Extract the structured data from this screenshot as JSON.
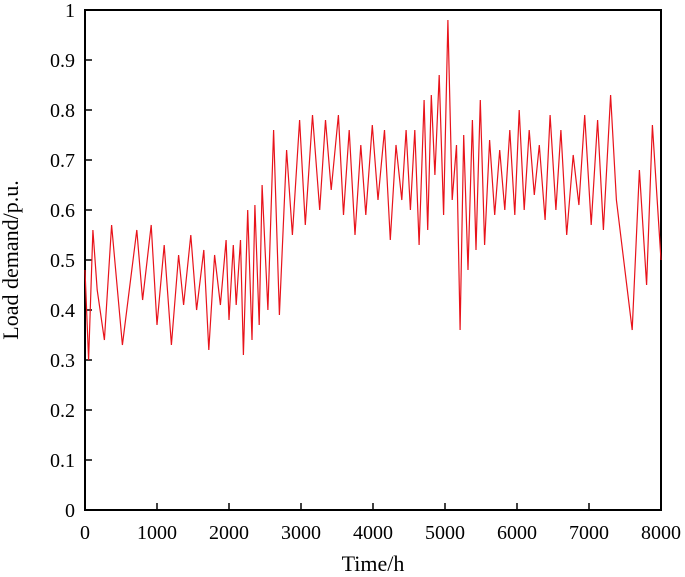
{
  "chart_data": {
    "type": "line",
    "xlabel": "Time/h",
    "ylabel": "Load demand/p.u.",
    "xlim": [
      0,
      8000
    ],
    "ylim": [
      0,
      1
    ],
    "xticks": [
      0,
      1000,
      2000,
      3000,
      4000,
      5000,
      6000,
      7000,
      8000
    ],
    "yticks": [
      0,
      0.1,
      0.2,
      0.3,
      0.4,
      0.5,
      0.6,
      0.7,
      0.8,
      0.9,
      1
    ],
    "ytick_labels": [
      "0",
      "0.1",
      "0.2",
      "0.3",
      "0.4",
      "0.5",
      "0.6",
      "0.7",
      "0.8",
      "0.9",
      "1"
    ],
    "grid": false,
    "line_color": "#e8131b",
    "series": [
      {
        "x": [
          0,
          50,
          110,
          170,
          270,
          370,
          520,
          720,
          800,
          920,
          1000,
          1100,
          1200,
          1300,
          1370,
          1470,
          1550,
          1650,
          1720,
          1800,
          1880,
          1960,
          2000,
          2060,
          2100,
          2160,
          2200,
          2260,
          2320,
          2360,
          2420,
          2460,
          2540,
          2620,
          2700,
          2800,
          2880,
          2980,
          3060,
          3160,
          3260,
          3340,
          3420,
          3520,
          3590,
          3670,
          3750,
          3830,
          3900,
          3990,
          4070,
          4160,
          4240,
          4320,
          4400,
          4460,
          4520,
          4580,
          4640,
          4710,
          4760,
          4810,
          4860,
          4920,
          4980,
          5040,
          5100,
          5160,
          5210,
          5260,
          5320,
          5380,
          5430,
          5490,
          5550,
          5620,
          5690,
          5760,
          5830,
          5900,
          5970,
          6030,
          6100,
          6170,
          6240,
          6310,
          6390,
          6460,
          6540,
          6610,
          6690,
          6780,
          6860,
          6940,
          7030,
          7120,
          7200,
          7300,
          7380,
          7600,
          7700,
          7800,
          7880,
          8000
        ],
        "values": [
          0.48,
          0.3,
          0.56,
          0.44,
          0.34,
          0.57,
          0.33,
          0.56,
          0.42,
          0.57,
          0.37,
          0.53,
          0.33,
          0.51,
          0.41,
          0.55,
          0.4,
          0.52,
          0.32,
          0.51,
          0.41,
          0.54,
          0.38,
          0.53,
          0.41,
          0.54,
          0.31,
          0.6,
          0.34,
          0.61,
          0.37,
          0.65,
          0.4,
          0.76,
          0.39,
          0.72,
          0.55,
          0.78,
          0.57,
          0.79,
          0.6,
          0.78,
          0.64,
          0.79,
          0.59,
          0.76,
          0.55,
          0.73,
          0.59,
          0.77,
          0.62,
          0.76,
          0.54,
          0.73,
          0.62,
          0.76,
          0.6,
          0.76,
          0.53,
          0.82,
          0.56,
          0.83,
          0.67,
          0.87,
          0.59,
          0.98,
          0.62,
          0.73,
          0.36,
          0.75,
          0.48,
          0.78,
          0.52,
          0.82,
          0.53,
          0.74,
          0.59,
          0.72,
          0.6,
          0.76,
          0.59,
          0.8,
          0.6,
          0.76,
          0.63,
          0.73,
          0.58,
          0.79,
          0.6,
          0.76,
          0.55,
          0.71,
          0.61,
          0.79,
          0.57,
          0.78,
          0.56,
          0.83,
          0.62,
          0.36,
          0.68,
          0.45,
          0.77,
          0.5
        ]
      }
    ]
  }
}
